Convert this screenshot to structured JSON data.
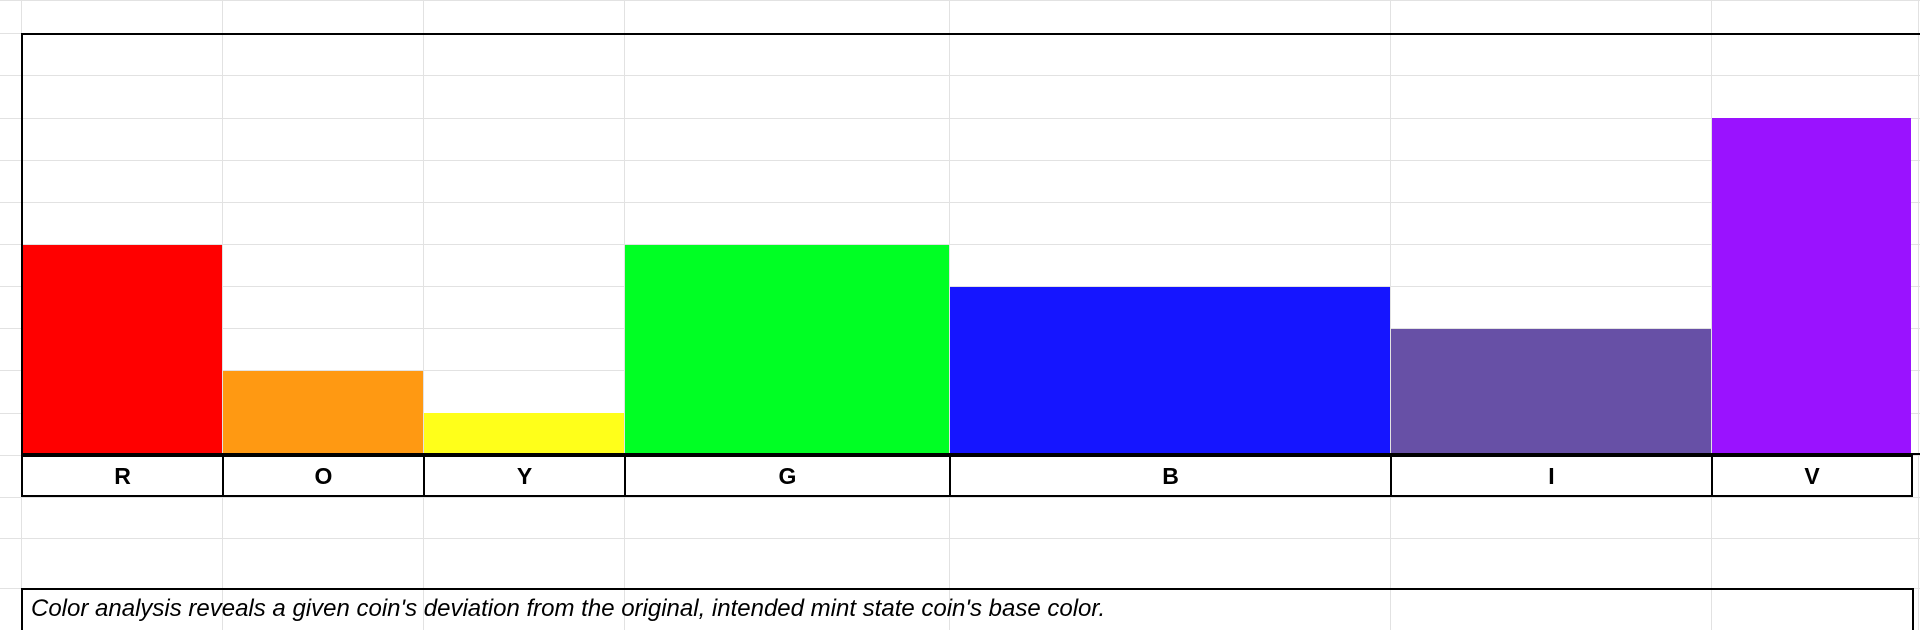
{
  "chart_data": {
    "type": "bar",
    "categories": [
      "R",
      "O",
      "Y",
      "G",
      "B",
      "I",
      "V"
    ],
    "values": [
      5,
      2,
      1,
      5,
      4,
      3,
      8
    ],
    "ylim": [
      0,
      10
    ],
    "colors": [
      "#ff0000",
      "#ff9912",
      "#ffff1a",
      "#00ff24",
      "#1515ff",
      "#6750a6",
      "#9a12ff"
    ],
    "grid": true,
    "legend": "none"
  },
  "note": {
    "text": "Color analysis reveals a given coin's deviation from the original, intended mint state coin's base color."
  }
}
